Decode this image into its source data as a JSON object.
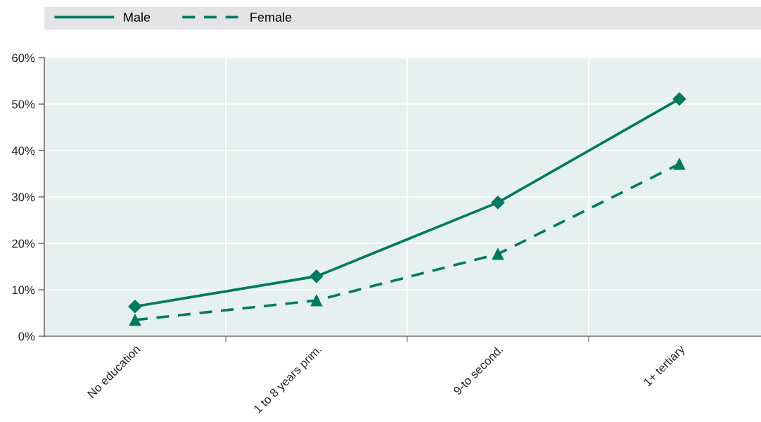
{
  "chart_data": {
    "type": "line",
    "categories": [
      "No education",
      "1 to 8 years prim.",
      "9-to second.",
      "1+ tertiary"
    ],
    "series": [
      {
        "name": "Male",
        "color": "#007a5e",
        "values": [
          6.4,
          12.9,
          28.8,
          51.1
        ],
        "marker": "diamond",
        "line_style": "solid"
      },
      {
        "name": "Female",
        "color": "#007a5e",
        "values": [
          3.5,
          7.7,
          17.7,
          37.1
        ],
        "marker": "triangle",
        "line_style": "dashed"
      }
    ],
    "ylim": [
      0,
      60
    ],
    "yticks": [
      {
        "value": 0,
        "label": "0%"
      },
      {
        "value": 10,
        "label": "10%"
      },
      {
        "value": 20,
        "label": "20%"
      },
      {
        "value": 30,
        "label": "30%"
      },
      {
        "value": 40,
        "label": "40%"
      },
      {
        "value": 50,
        "label": "50%"
      },
      {
        "value": 60,
        "label": "60%"
      }
    ],
    "grid": true,
    "legend": "top"
  }
}
